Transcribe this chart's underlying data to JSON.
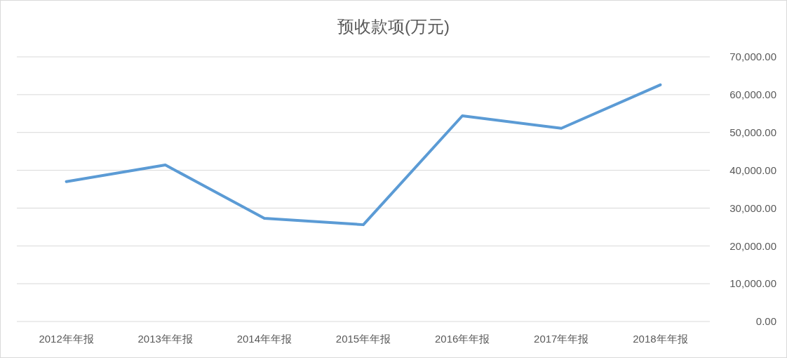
{
  "chart_data": {
    "type": "line",
    "title": "预收款项(万元)",
    "categories": [
      "2012年年报",
      "2013年年报",
      "2014年年报",
      "2015年年报",
      "2016年年报",
      "2017年年报",
      "2018年年报"
    ],
    "series": [
      {
        "color": "#5b9bd5",
        "values": [
          37000,
          41400,
          27300,
          25600,
          54400,
          51100,
          62600
        ]
      }
    ],
    "ylim": [
      0,
      70000
    ],
    "yticks": [
      {
        "value": 0,
        "label": "0.00"
      },
      {
        "value": 10000,
        "label": "10,000.00"
      },
      {
        "value": 20000,
        "label": "20,000.00"
      },
      {
        "value": 30000,
        "label": "30,000.00"
      },
      {
        "value": 40000,
        "label": "40,000.00"
      },
      {
        "value": 50000,
        "label": "50,000.00"
      },
      {
        "value": 60000,
        "label": "60,000.00"
      },
      {
        "value": 70000,
        "label": "70,000.00"
      }
    ],
    "grid": "y"
  }
}
